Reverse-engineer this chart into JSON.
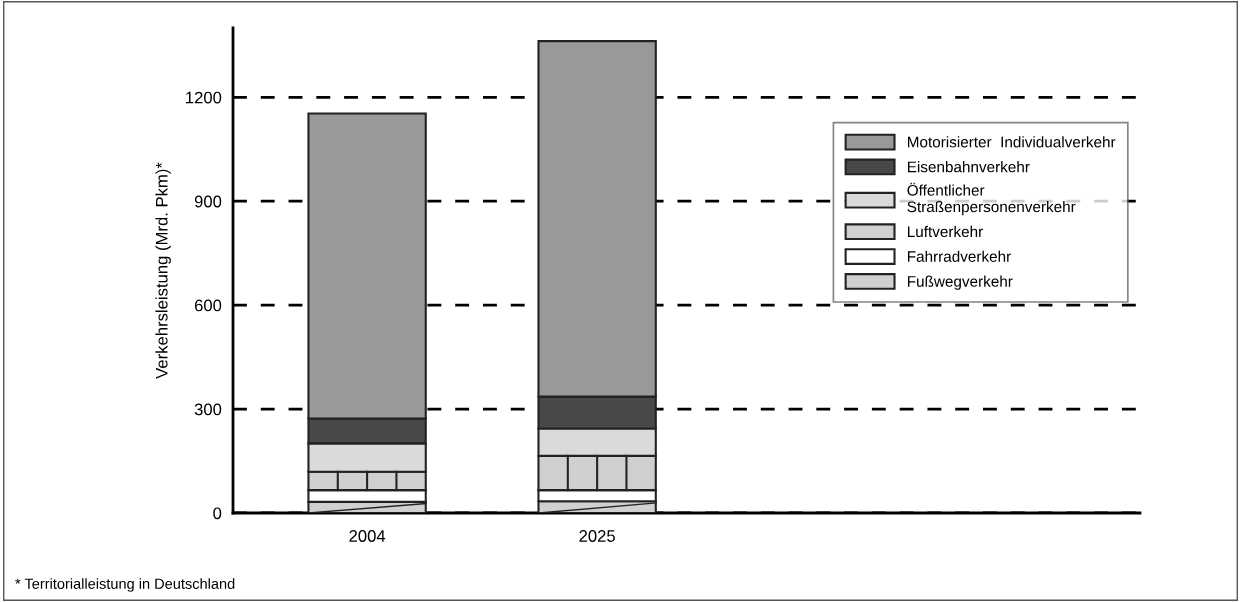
{
  "chart_data": {
    "type": "bar",
    "stacked": true,
    "ylabel": "Verkehrsleistung (Mrd. Pkm)*",
    "categories": [
      "2004",
      "2025"
    ],
    "series": [
      {
        "name": "Fußwegverkehr",
        "color": "#d0d0d0",
        "values": [
          32,
          34
        ]
      },
      {
        "name": "Fahrradverkehr",
        "color": "#ffffff",
        "values": [
          34,
          32
        ]
      },
      {
        "name": "Luftverkehr",
        "color": "#d0d0d0",
        "values": [
          53,
          99
        ]
      },
      {
        "name": "Öffentlicher\nStraßenpersonenverkehr",
        "color": "#dadada",
        "values": [
          82,
          79
        ]
      },
      {
        "name": "Eisenbahnverkehr",
        "color": "#484848",
        "values": [
          72,
          92
        ]
      },
      {
        "name": "Motorisierter  Individualverkehr",
        "color": "#999999",
        "values": [
          880,
          1026
        ]
      }
    ],
    "ylim": [
      0,
      1400
    ],
    "yticks": [
      0,
      300,
      600,
      900,
      1200
    ],
    "grid": "y",
    "legend": "right",
    "annotations": [
      "* Territorialleistung in Deutschland"
    ]
  }
}
